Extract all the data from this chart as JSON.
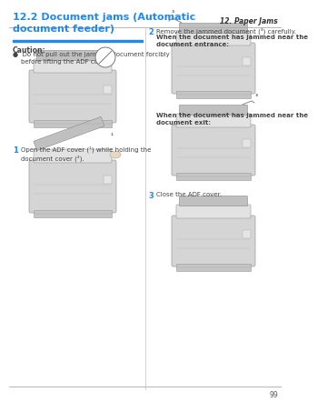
{
  "page_header": "12. Paper Jams",
  "page_number": "99",
  "section_title": "12.2 Document jams (Automatic\ndocument feeder)",
  "title_color": "#2288ee",
  "caution_label": "Caution:",
  "caution_bullet": "●  Do not pull out the jammed document forcibly\n    before lifting the ADF cover.",
  "step1_num": "1",
  "step1_text": "Open the ADF cover (¹) while holding the\ndocument cover (²).",
  "step2_num": "2",
  "step2_text": "Remove the jammed document (³) carefully.",
  "step2_sub1": "When the document has jammed near the\ndocument entrance:",
  "step2_sub2": "When the document has jammed near the\ndocument exit:",
  "step3_num": "3",
  "step3_text": "Close the ADF cover.",
  "bg_color": "#ffffff",
  "text_color": "#444444",
  "gray_text": "#666666",
  "header_line_color": "#aaaaaa",
  "blue_bar_color": "#2288ee",
  "printer_body": "#d8d8d8",
  "printer_dark": "#b0b0b0",
  "printer_light": "#e8e8e8",
  "printer_accent": "#c8c0a8"
}
